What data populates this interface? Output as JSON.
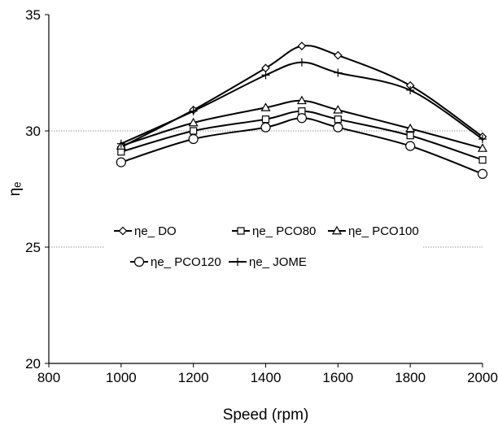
{
  "chart_data": {
    "type": "line",
    "title": "",
    "xlabel": "Speed  (rpm)",
    "ylabel": "ηₑ",
    "xlim": [
      800,
      2000
    ],
    "ylim": [
      20,
      35
    ],
    "xticks": [
      800,
      1000,
      1200,
      1400,
      1600,
      1800,
      2000
    ],
    "yticks": [
      20,
      25,
      30,
      35
    ],
    "x_tick_labels": [
      "800",
      "1000",
      "1200",
      "1400",
      "1600",
      "1800",
      "2000"
    ],
    "y_tick_labels": [
      "20",
      "25",
      "30",
      "35"
    ],
    "gridlines": "horizontal dotted at 25 and 30",
    "legend_position": "inside-center",
    "x": [
      1000,
      1200,
      1400,
      1500,
      1600,
      1800,
      2000
    ],
    "series": [
      {
        "name": "ηe_ DO",
        "marker": "diamond",
        "values": [
          29.3,
          30.9,
          32.7,
          33.65,
          33.25,
          31.95,
          29.75
        ]
      },
      {
        "name": "ηe_ PCO80",
        "marker": "square",
        "values": [
          29.1,
          30.0,
          30.5,
          30.85,
          30.5,
          29.8,
          28.75
        ]
      },
      {
        "name": "ηe_ PCO100",
        "marker": "triangle",
        "values": [
          29.35,
          30.35,
          31.0,
          31.3,
          30.9,
          30.1,
          29.25
        ]
      },
      {
        "name": "ηe_ PCO120",
        "marker": "circle",
        "values": [
          28.65,
          29.65,
          30.15,
          30.55,
          30.15,
          29.35,
          28.15
        ]
      },
      {
        "name": "ηe_ JOME",
        "marker": "plus",
        "values": [
          29.45,
          30.85,
          32.4,
          32.95,
          32.5,
          31.75,
          29.65
        ]
      }
    ],
    "line_color": "#000000"
  }
}
